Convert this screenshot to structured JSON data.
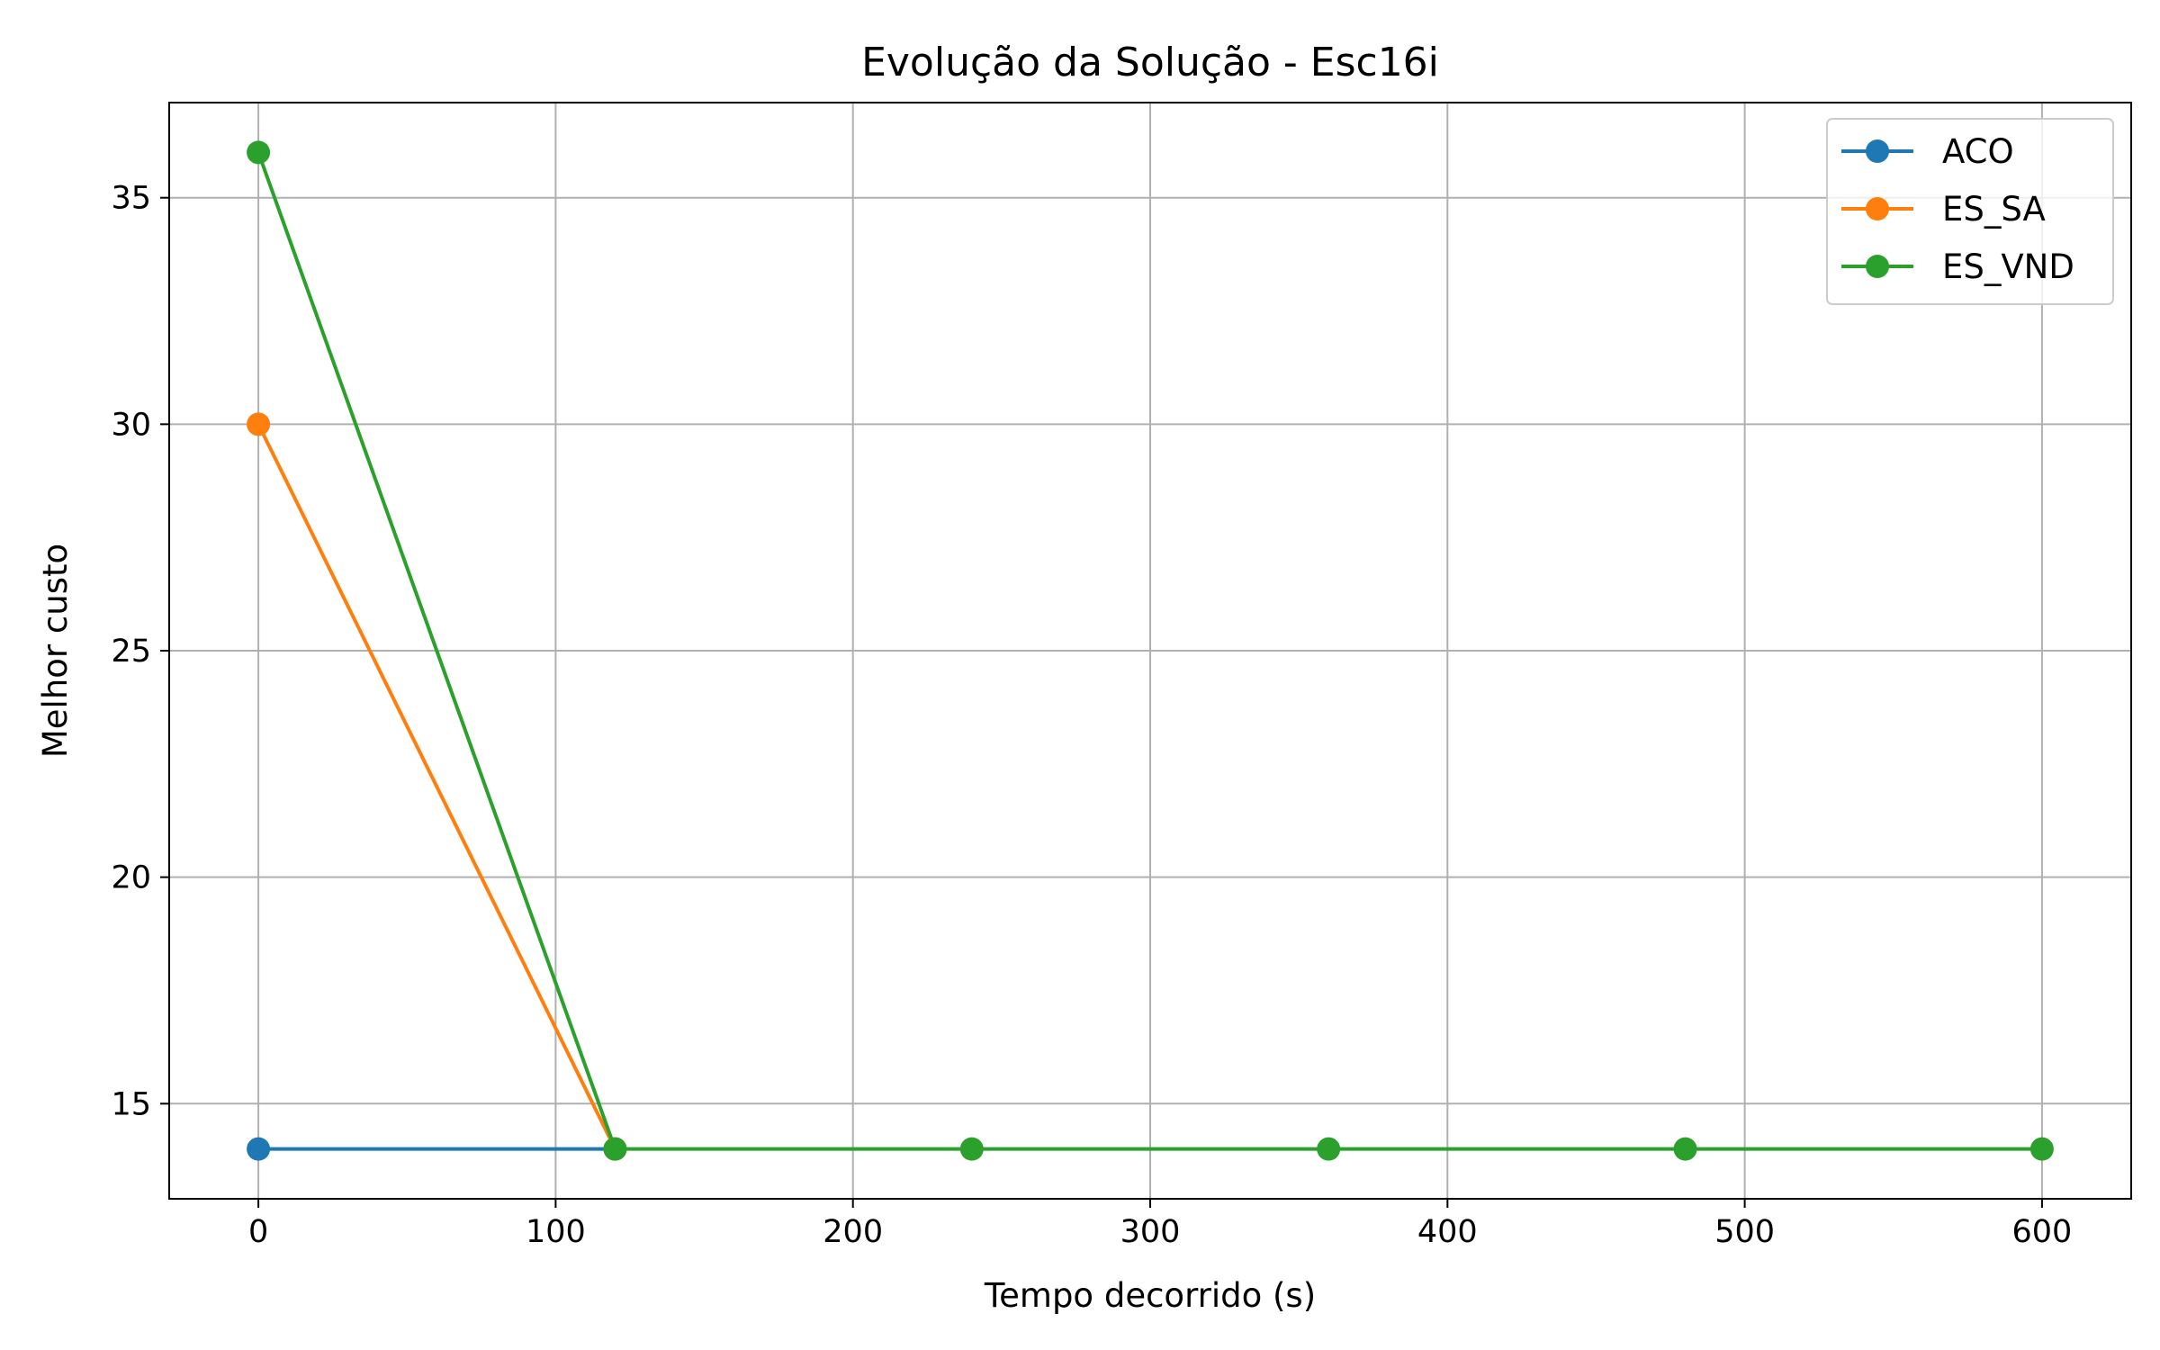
{
  "chart_data": {
    "type": "line",
    "title": "Evolução da Solução - Esc16i",
    "xlabel": "Tempo decorrido (s)",
    "ylabel": "Melhor custo",
    "xlim": [
      -30,
      630
    ],
    "ylim": [
      12.9,
      37.1
    ],
    "xticks": [
      0,
      100,
      200,
      300,
      400,
      500,
      600
    ],
    "yticks": [
      15,
      20,
      25,
      30,
      35
    ],
    "grid": true,
    "legend_position": "top-right",
    "series": [
      {
        "name": "ACO",
        "color": "#1f77b4",
        "x": [
          0,
          120
        ],
        "y": [
          14,
          14
        ]
      },
      {
        "name": "ES_SA",
        "color": "#ff7f0e",
        "x": [
          0,
          120
        ],
        "y": [
          30,
          14
        ]
      },
      {
        "name": "ES_VND",
        "color": "#2ca02c",
        "x": [
          0,
          120,
          240,
          360,
          480,
          600
        ],
        "y": [
          36,
          14,
          14,
          14,
          14,
          14
        ]
      }
    ]
  }
}
